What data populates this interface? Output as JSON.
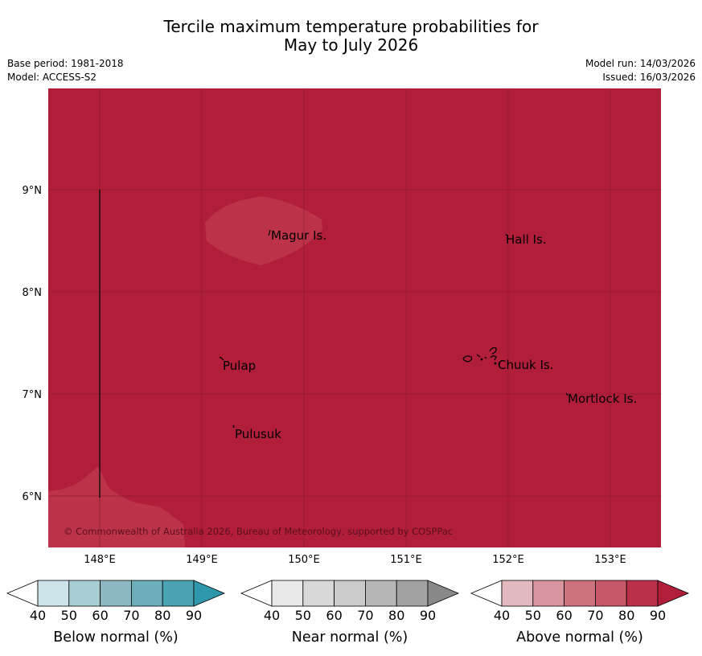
{
  "title": {
    "line1": "Tercile maximum temperature probabilities for",
    "line2": "May to July 2026"
  },
  "meta_left": {
    "base_period": "Base period: 1981-2018",
    "model": "Model: ACCESS-S2"
  },
  "meta_right": {
    "model_run": "Model run: 14/03/2026",
    "issued": "Issued: 16/03/2026"
  },
  "map": {
    "background_color": "#b01e3a",
    "lighter_region_color": "#bc3349",
    "lat_labels": [
      "9°N",
      "8°N",
      "7°N",
      "6°N"
    ],
    "lon_labels": [
      "148°E",
      "149°E",
      "150°E",
      "151°E",
      "152°E",
      "153°E"
    ],
    "places": [
      "Magur Is.",
      "Hall Is.",
      "Pulap",
      "Chuuk Is.",
      "Mortlock Is.",
      "Pulusuk"
    ],
    "copyright": "© Commonwealth of Australia 2026, Bureau of Meteorology, supported by COSPPac"
  },
  "colorbars": [
    {
      "title": "Below normal (%)",
      "ticks": [
        "40",
        "50",
        "60",
        "70",
        "80",
        "90"
      ],
      "colors": [
        "#ffffff",
        "#cce3e9",
        "#a9ced4",
        "#8db8c3",
        "#6caeba",
        "#4aa3b2",
        "#2e97ab"
      ]
    },
    {
      "title": "Near normal (%)",
      "ticks": [
        "40",
        "50",
        "60",
        "70",
        "80",
        "90"
      ],
      "colors": [
        "#ffffff",
        "#e8e8e8",
        "#d8d8d8",
        "#cacaca",
        "#b6b6b6",
        "#a2a2a2",
        "#888888"
      ]
    },
    {
      "title": "Above normal (%)",
      "ticks": [
        "40",
        "50",
        "60",
        "70",
        "80",
        "90"
      ],
      "colors": [
        "#ffffff",
        "#e2b9bf",
        "#d8959f",
        "#cc737e",
        "#c65867",
        "#ba3149",
        "#b01e3a"
      ]
    }
  ]
}
